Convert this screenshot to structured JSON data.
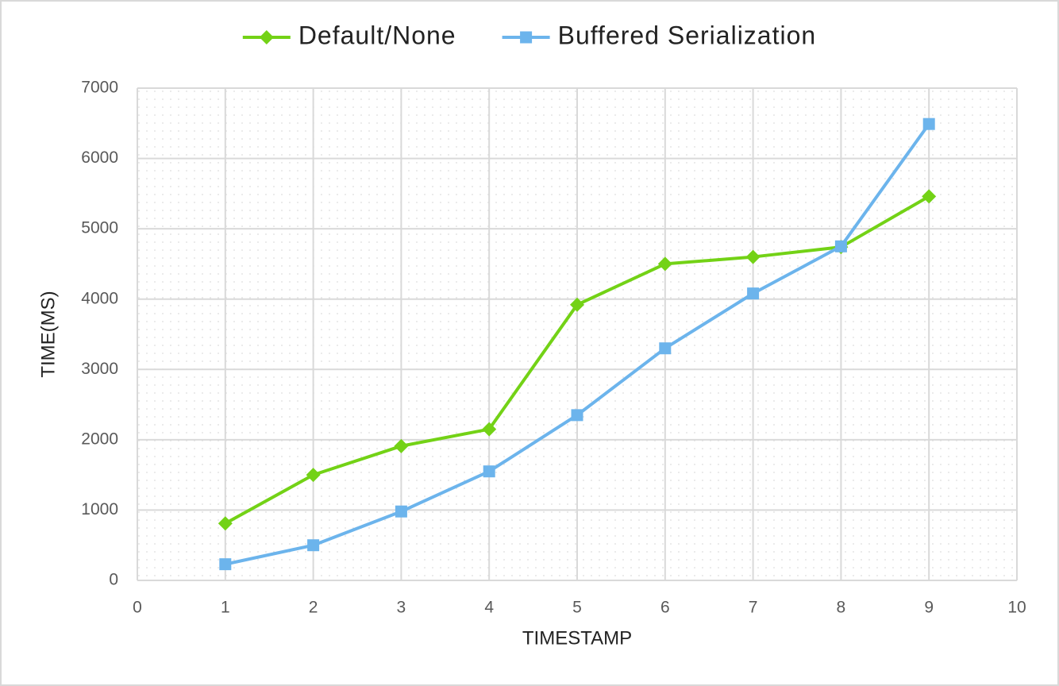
{
  "chart_data": {
    "type": "line",
    "x_label": "TIMESTAMP",
    "y_label": "TIME(MS)",
    "x": [
      1,
      2,
      3,
      4,
      5,
      6,
      7,
      8,
      9
    ],
    "series": [
      {
        "name": "Default/None",
        "color": "#73d216",
        "marker": "diamond",
        "values": [
          810,
          1500,
          1910,
          2150,
          3920,
          4500,
          4600,
          4740,
          5460
        ]
      },
      {
        "name": "Buffered Serialization",
        "color": "#6cb4ec",
        "marker": "square",
        "values": [
          230,
          500,
          980,
          1550,
          2350,
          3300,
          4080,
          4750,
          6490
        ]
      }
    ],
    "xlim": [
      0,
      10
    ],
    "xticks": [
      0,
      1,
      2,
      3,
      4,
      5,
      6,
      7,
      8,
      9,
      10
    ],
    "ylim": [
      0,
      7000
    ],
    "yticks": [
      0,
      1000,
      2000,
      3000,
      4000,
      5000,
      6000,
      7000
    ],
    "grid": true,
    "legend": "top"
  }
}
